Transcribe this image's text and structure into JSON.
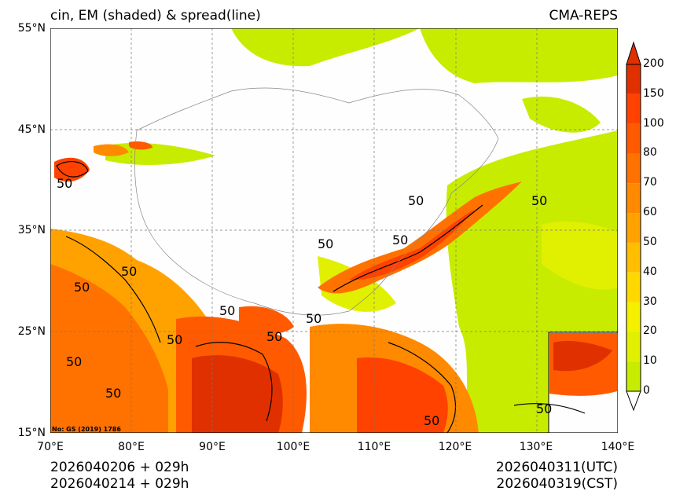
{
  "title": {
    "left": "cin, EM (shaded) & spread(line)",
    "right": "CMA-REPS"
  },
  "axes": {
    "lat_labels": [
      "55°N",
      "45°N",
      "35°N",
      "25°N",
      "15°N"
    ],
    "lon_labels": [
      "70°E",
      "80°E",
      "90°E",
      "100°E",
      "110°E",
      "120°E",
      "130°E",
      "140°E"
    ]
  },
  "contour_labels": [
    "50",
    "50",
    "50",
    "50",
    "50",
    "50",
    "50",
    "50",
    "50",
    "50",
    "50",
    "50",
    "50",
    "50",
    "50"
  ],
  "map_note": "No: GS (2019) 1786",
  "colorbar": {
    "levels": [
      "0",
      "10",
      "20",
      "30",
      "40",
      "50",
      "60",
      "70",
      "80",
      "100",
      "150",
      "200"
    ],
    "colors": [
      "#c8ec00",
      "#e0f000",
      "#f5f000",
      "#ffd800",
      "#ffbe00",
      "#ffa200",
      "#ff8a00",
      "#ff7200",
      "#ff5a00",
      "#ff4200",
      "#e03000"
    ],
    "extend_top": "#e03000",
    "extend_bottom": "#ffffff"
  },
  "footer": {
    "init_utc": "2026040206  +  029h",
    "init_cst": "2026040214  +  029h",
    "valid_utc": "2026040311(UTC)",
    "valid_cst": "2026040319(CST)"
  }
}
